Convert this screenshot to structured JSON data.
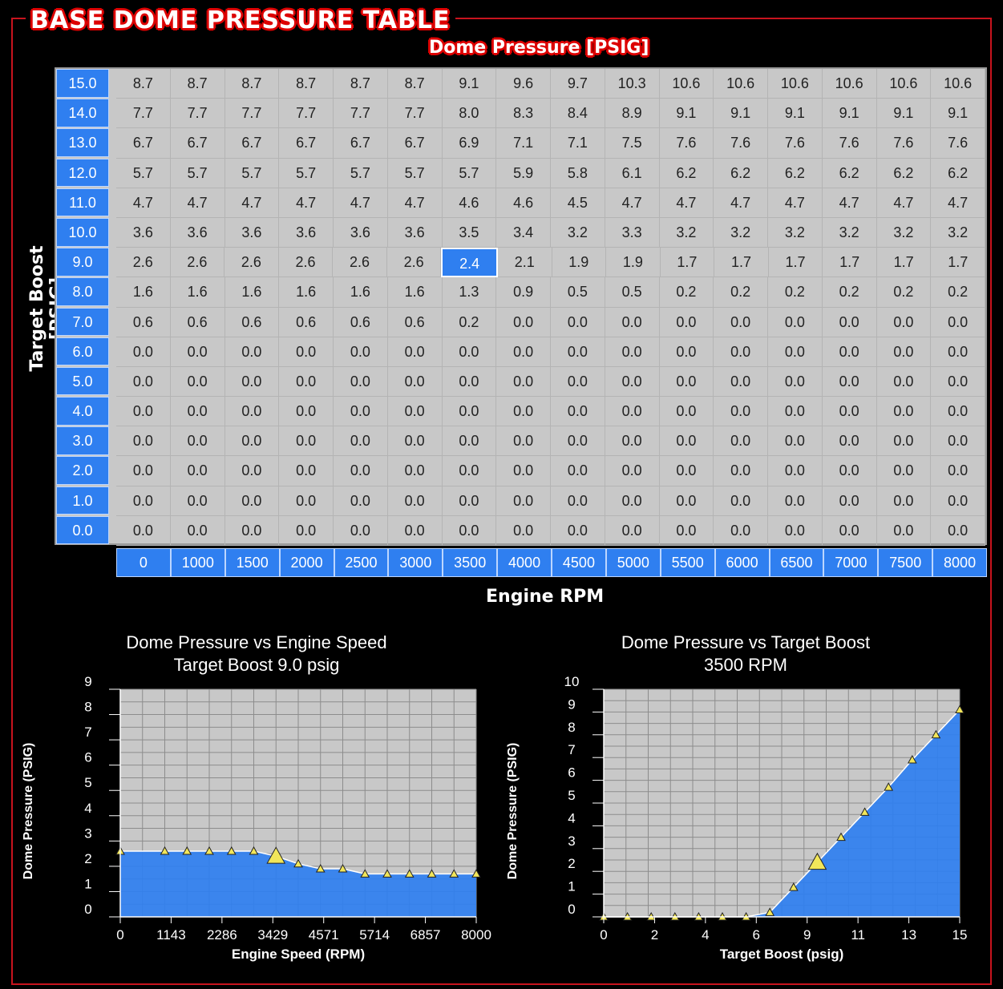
{
  "panel_title": "BASE DOME PRESSURE TABLE",
  "table": {
    "column_title": "Dome Pressure [PSIG]",
    "row_title": "Target Boost [PSIG]",
    "x_title": "Engine RPM",
    "rpm": [
      "0",
      "1000",
      "1500",
      "2000",
      "2500",
      "3000",
      "3500",
      "4000",
      "4500",
      "5000",
      "5500",
      "6000",
      "6500",
      "7000",
      "7500",
      "8000"
    ],
    "boost": [
      "15.0",
      "14.0",
      "13.0",
      "12.0",
      "11.0",
      "10.0",
      "9.0",
      "8.0",
      "7.0",
      "6.0",
      "5.0",
      "4.0",
      "3.0",
      "2.0",
      "1.0",
      "0.0"
    ],
    "rows": [
      [
        "8.7",
        "8.7",
        "8.7",
        "8.7",
        "8.7",
        "8.7",
        "9.1",
        "9.6",
        "9.7",
        "10.3",
        "10.6",
        "10.6",
        "10.6",
        "10.6",
        "10.6",
        "10.6"
      ],
      [
        "7.7",
        "7.7",
        "7.7",
        "7.7",
        "7.7",
        "7.7",
        "8.0",
        "8.3",
        "8.4",
        "8.9",
        "9.1",
        "9.1",
        "9.1",
        "9.1",
        "9.1",
        "9.1"
      ],
      [
        "6.7",
        "6.7",
        "6.7",
        "6.7",
        "6.7",
        "6.7",
        "6.9",
        "7.1",
        "7.1",
        "7.5",
        "7.6",
        "7.6",
        "7.6",
        "7.6",
        "7.6",
        "7.6"
      ],
      [
        "5.7",
        "5.7",
        "5.7",
        "5.7",
        "5.7",
        "5.7",
        "5.7",
        "5.9",
        "5.8",
        "6.1",
        "6.2",
        "6.2",
        "6.2",
        "6.2",
        "6.2",
        "6.2"
      ],
      [
        "4.7",
        "4.7",
        "4.7",
        "4.7",
        "4.7",
        "4.7",
        "4.6",
        "4.6",
        "4.5",
        "4.7",
        "4.7",
        "4.7",
        "4.7",
        "4.7",
        "4.7",
        "4.7"
      ],
      [
        "3.6",
        "3.6",
        "3.6",
        "3.6",
        "3.6",
        "3.6",
        "3.5",
        "3.4",
        "3.2",
        "3.3",
        "3.2",
        "3.2",
        "3.2",
        "3.2",
        "3.2",
        "3.2"
      ],
      [
        "2.6",
        "2.6",
        "2.6",
        "2.6",
        "2.6",
        "2.6",
        "2.4",
        "2.1",
        "1.9",
        "1.9",
        "1.7",
        "1.7",
        "1.7",
        "1.7",
        "1.7",
        "1.7"
      ],
      [
        "1.6",
        "1.6",
        "1.6",
        "1.6",
        "1.6",
        "1.6",
        "1.3",
        "0.9",
        "0.5",
        "0.5",
        "0.2",
        "0.2",
        "0.2",
        "0.2",
        "0.2",
        "0.2"
      ],
      [
        "0.6",
        "0.6",
        "0.6",
        "0.6",
        "0.6",
        "0.6",
        "0.2",
        "0.0",
        "0.0",
        "0.0",
        "0.0",
        "0.0",
        "0.0",
        "0.0",
        "0.0",
        "0.0"
      ],
      [
        "0.0",
        "0.0",
        "0.0",
        "0.0",
        "0.0",
        "0.0",
        "0.0",
        "0.0",
        "0.0",
        "0.0",
        "0.0",
        "0.0",
        "0.0",
        "0.0",
        "0.0",
        "0.0"
      ],
      [
        "0.0",
        "0.0",
        "0.0",
        "0.0",
        "0.0",
        "0.0",
        "0.0",
        "0.0",
        "0.0",
        "0.0",
        "0.0",
        "0.0",
        "0.0",
        "0.0",
        "0.0",
        "0.0"
      ],
      [
        "0.0",
        "0.0",
        "0.0",
        "0.0",
        "0.0",
        "0.0",
        "0.0",
        "0.0",
        "0.0",
        "0.0",
        "0.0",
        "0.0",
        "0.0",
        "0.0",
        "0.0",
        "0.0"
      ],
      [
        "0.0",
        "0.0",
        "0.0",
        "0.0",
        "0.0",
        "0.0",
        "0.0",
        "0.0",
        "0.0",
        "0.0",
        "0.0",
        "0.0",
        "0.0",
        "0.0",
        "0.0",
        "0.0"
      ],
      [
        "0.0",
        "0.0",
        "0.0",
        "0.0",
        "0.0",
        "0.0",
        "0.0",
        "0.0",
        "0.0",
        "0.0",
        "0.0",
        "0.0",
        "0.0",
        "0.0",
        "0.0",
        "0.0"
      ],
      [
        "0.0",
        "0.0",
        "0.0",
        "0.0",
        "0.0",
        "0.0",
        "0.0",
        "0.0",
        "0.0",
        "0.0",
        "0.0",
        "0.0",
        "0.0",
        "0.0",
        "0.0",
        "0.0"
      ],
      [
        "0.0",
        "0.0",
        "0.0",
        "0.0",
        "0.0",
        "0.0",
        "0.0",
        "0.0",
        "0.0",
        "0.0",
        "0.0",
        "0.0",
        "0.0",
        "0.0",
        "0.0",
        "0.0"
      ]
    ],
    "selected": {
      "row": 6,
      "col": 6
    }
  },
  "colors": {
    "accent": "#2f7ff0",
    "frame": "#c8141e",
    "grid_bg": "#c8c8c8",
    "marker": "#f2e65a"
  },
  "chart_data": [
    {
      "type": "area",
      "title": "Dome Pressure vs Engine Speed",
      "subtitle": "Target Boost 9.0 psig",
      "xlabel": "Engine Speed (RPM)",
      "ylabel": "Dome Pressure (PSIG)",
      "xlim": [
        0,
        8000
      ],
      "ylim": [
        0,
        9
      ],
      "xticks": [
        "0",
        "1143",
        "2286",
        "3429",
        "4571",
        "5714",
        "6857",
        "8000"
      ],
      "yticks": [
        "0",
        "1",
        "2",
        "3",
        "4",
        "5",
        "6",
        "7",
        "8",
        "9"
      ],
      "x": [
        0,
        1000,
        1500,
        2000,
        2500,
        3000,
        3500,
        4000,
        4500,
        5000,
        5500,
        6000,
        6500,
        7000,
        7500,
        8000
      ],
      "values": [
        2.6,
        2.6,
        2.6,
        2.6,
        2.6,
        2.6,
        2.4,
        2.1,
        1.9,
        1.9,
        1.7,
        1.7,
        1.7,
        1.7,
        1.7,
        1.7
      ],
      "highlight_x": 3500,
      "grid": true
    },
    {
      "type": "area",
      "title": "Dome Pressure vs Target Boost",
      "subtitle": "3500 RPM",
      "xlabel": "Target Boost (psig)",
      "ylabel": "Dome Pressure (PSIG)",
      "xlim": [
        0,
        15
      ],
      "ylim": [
        0,
        10
      ],
      "xticks": [
        "0",
        "2",
        "4",
        "6",
        "9",
        "11",
        "13",
        "15"
      ],
      "yticks": [
        "0",
        "1",
        "2",
        "3",
        "4",
        "5",
        "6",
        "7",
        "8",
        "9",
        "10"
      ],
      "x": [
        0,
        1,
        2,
        3,
        4,
        5,
        6,
        7,
        8,
        9,
        10,
        11,
        12,
        13,
        14,
        15
      ],
      "values": [
        0,
        0,
        0,
        0,
        0,
        0,
        0,
        0.2,
        1.3,
        2.4,
        3.5,
        4.6,
        5.7,
        6.9,
        8.0,
        9.1
      ],
      "highlight_x": 9,
      "grid": true
    }
  ]
}
